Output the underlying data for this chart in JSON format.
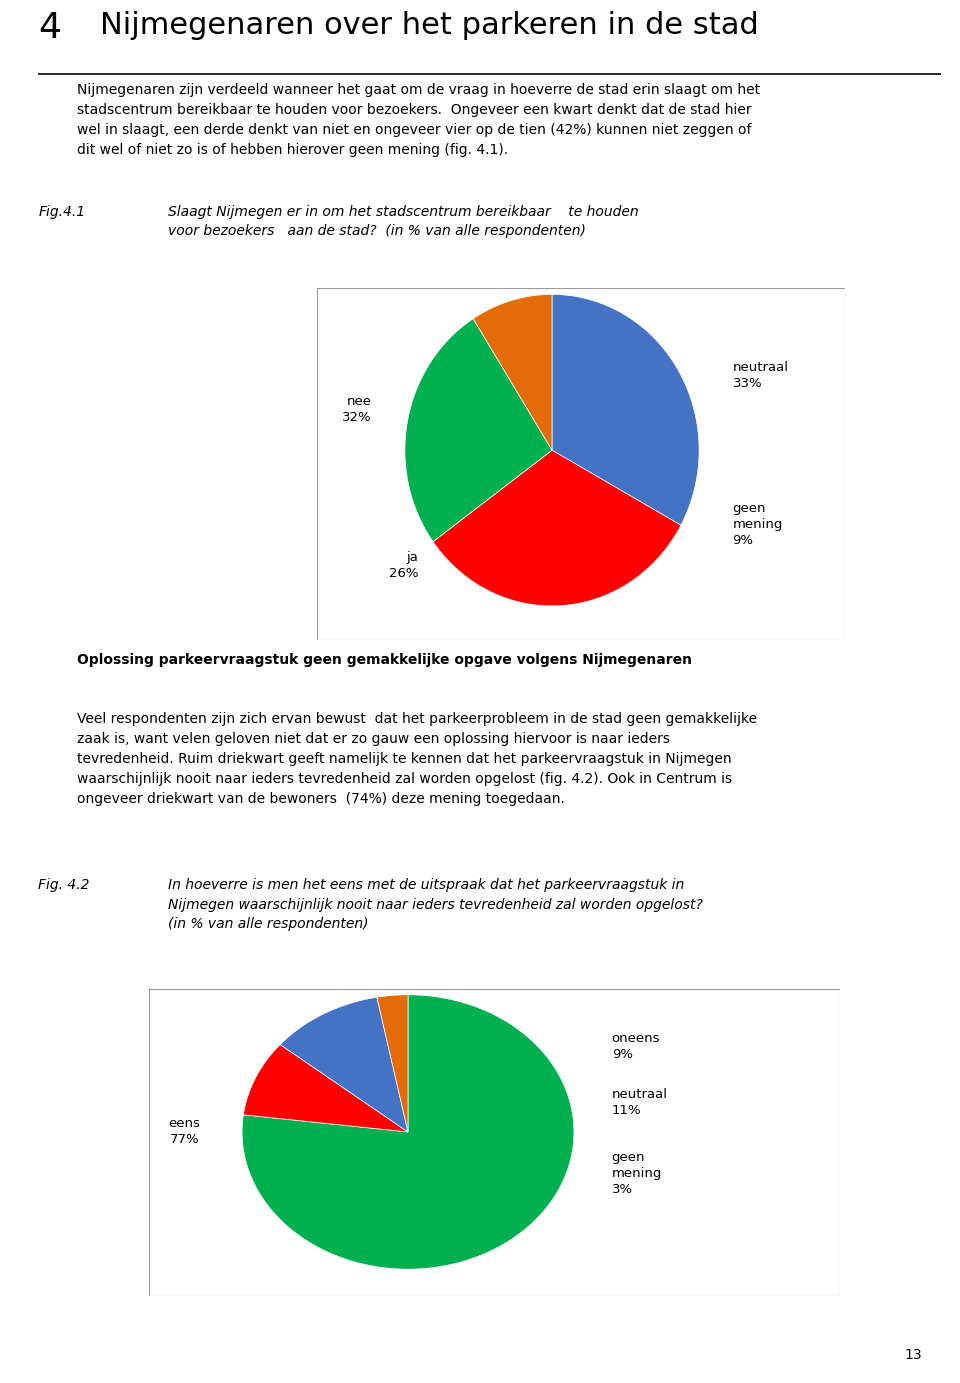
{
  "page_title_num": "4",
  "page_title": "Nijmegenaren over het parkeren in de stad",
  "body_text1": "Nijmegenaren zijn verdeeld wanneer het gaat om de vraag in hoeverre de stad erin slaagt om het\nstadscentrum bereikbaar te houden voor bezoekers.  Ongeveer een kwart denkt dat de stad hier\nwel in slaagt, een derde denkt van niet en ongeveer vier op de tien (42%) kunnen niet zeggen of\ndit wel of niet zo is of hebben hierover geen mening (fig. 4.1).",
  "fig1_label": "Fig.4.1",
  "fig1_caption": "Slaagt Nijmegen er in om het stadscentrum bereikbaar    te houden\nvoor bezoekers   aan de stad?  (in % van alle respondenten)",
  "pie1_values": [
    33,
    32,
    26,
    9
  ],
  "pie1_colors": [
    "#4472c4",
    "#ff0000",
    "#00b050",
    "#e36c09"
  ],
  "pie1_startangle": 90,
  "section_title": "Oplossing parkeervraagstuk geen gemakkelijke opgave volgens Nijmegenaren",
  "body_text2": "Veel respondenten zijn zich ervan bewust  dat het parkeerprobleem in de stad geen gemakkelijke\nzaak is, want velen geloven niet dat er zo gauw een oplossing hiervoor is naar ieders\ntevredenheid. Ruim driekwart geeft namelijk te kennen dat het parkeervraagstuk in Nijmegen\nwaarschijnlijk nooit naar ieders tevredenheid zal worden opgelost (fig. 4.2). Ook in Centrum is\nongeveer driekwart van de bewoners  (74%) deze mening toegedaan.",
  "fig2_label": "Fig. 4.2",
  "fig2_caption": "In hoeverre is men het eens met de uitspraak dat het parkeervraagstuk in\nNijmegen waarschijnlijk nooit naar ieders tevredenheid zal worden opgelost?\n(in % van alle respondenten)",
  "pie2_values": [
    77,
    9,
    11,
    3
  ],
  "pie2_colors": [
    "#00b050",
    "#ff0000",
    "#4472c4",
    "#e36c09"
  ],
  "pie2_startangle": 90,
  "page_number": "13",
  "bg_color": "#ffffff",
  "text_color": "#000000"
}
